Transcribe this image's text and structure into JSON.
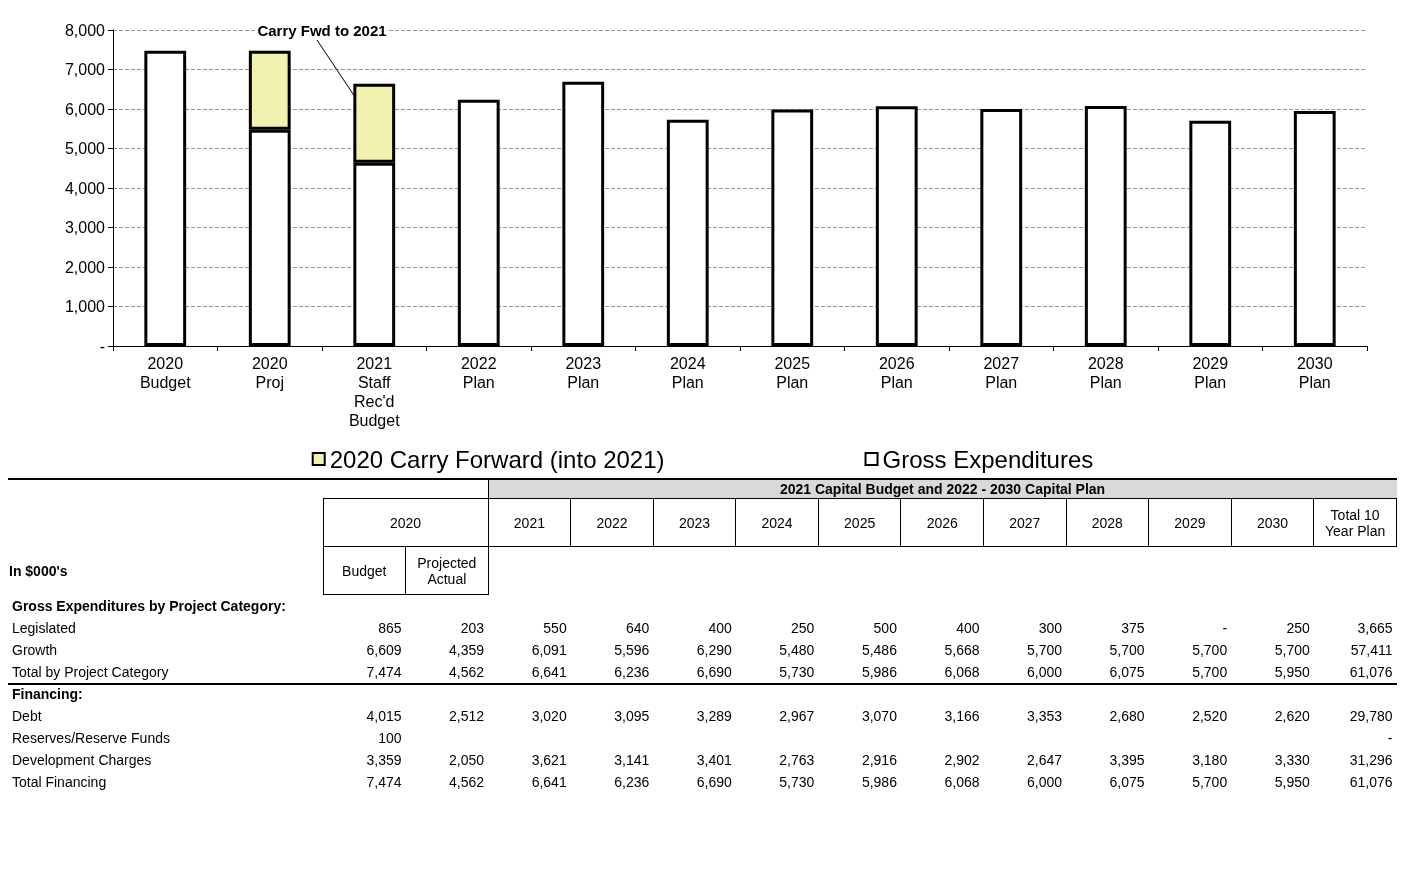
{
  "chart_data": [
    {
      "type": "bar",
      "stacked": true,
      "categories": [
        "2020\nBudget",
        "2020\nProj",
        "2021\nStaff\nRec'd\nBudget",
        "2022\nPlan",
        "2023\nPlan",
        "2024\nPlan",
        "2025\nPlan",
        "2026\nPlan",
        "2027\nPlan",
        "2028\nPlan",
        "2029\nPlan",
        "2030\nPlan"
      ],
      "series": [
        {
          "name": "Gross Expenditures",
          "color": "#ffffff",
          "values": [
            7474,
            5474,
            4641,
            6236,
            6690,
            5730,
            5986,
            6068,
            6000,
            6075,
            5700,
            5950
          ]
        },
        {
          "name": "2020 Carry Forward (into 2021)",
          "color": "#f2f2b0",
          "values": [
            null,
            2000,
            2000,
            null,
            null,
            null,
            null,
            null,
            null,
            null,
            null,
            null
          ]
        }
      ],
      "ylim": [
        0,
        8000
      ],
      "yticks": [
        {
          "value": 0,
          "label": "-"
        },
        {
          "value": 1000,
          "label": "1,000"
        },
        {
          "value": 2000,
          "label": "2,000"
        },
        {
          "value": 3000,
          "label": "3,000"
        },
        {
          "value": 4000,
          "label": "4,000"
        },
        {
          "value": 5000,
          "label": "5,000"
        },
        {
          "value": 6000,
          "label": "6,000"
        },
        {
          "value": 7000,
          "label": "7,000"
        },
        {
          "value": 8000,
          "label": "8,000"
        }
      ],
      "grid": "y",
      "legend": "bottom",
      "annotations": [
        "Carry Fwd to 2021"
      ]
    },
    {
      "type": "heatmap",
      "data_labels": true,
      "title": "2021  Capital Budget and 2022 - 2030 Capital Plan",
      "ylabel": "In $000's",
      "annotations": [
        "2020"
      ],
      "categories": [
        "Budget",
        "Projected Actual",
        "2021",
        "2022",
        "2023",
        "2024",
        "2025",
        "2026",
        "2027",
        "2028",
        "2029",
        "2030",
        "Total 10 Year Plan"
      ],
      "y_categories": [
        "Gross Expenditures by Project Category:",
        "Legislated",
        "Growth",
        "Total by Project Category",
        "Financing:",
        "Debt",
        "Reserves/Reserve Funds",
        "Development Charges",
        "Total Financing"
      ],
      "cells": [
        [
          null,
          null,
          null,
          null,
          null,
          null,
          null,
          null,
          null,
          null,
          null,
          null,
          null
        ],
        [
          865,
          203,
          550,
          640,
          400,
          250,
          500,
          400,
          300,
          375,
          null,
          250,
          3665
        ],
        [
          6609,
          4359,
          6091,
          5596,
          6290,
          5480,
          5486,
          5668,
          5700,
          5700,
          5700,
          5700,
          57411
        ],
        [
          7474,
          4562,
          6641,
          6236,
          6690,
          5730,
          5986,
          6068,
          6000,
          6075,
          5700,
          5950,
          61076
        ],
        [
          null,
          null,
          null,
          null,
          null,
          null,
          null,
          null,
          null,
          null,
          null,
          null,
          null
        ],
        [
          4015,
          2512,
          3020,
          3095,
          3289,
          2967,
          3070,
          3166,
          3353,
          2680,
          2520,
          2620,
          29780
        ],
        [
          100,
          null,
          null,
          null,
          null,
          null,
          null,
          null,
          null,
          null,
          null,
          null,
          null
        ],
        [
          3359,
          2050,
          3621,
          3141,
          3401,
          2763,
          2916,
          2902,
          2647,
          3395,
          3180,
          3330,
          31296
        ],
        [
          7474,
          4562,
          6641,
          6236,
          6690,
          5730,
          5986,
          6068,
          6000,
          6075,
          5700,
          5950,
          61076
        ]
      ],
      "cell_labels": [
        [
          null,
          null,
          null,
          null,
          null,
          null,
          null,
          null,
          null,
          null,
          null,
          null,
          null
        ],
        [
          "865",
          "203",
          "550",
          "640",
          "400",
          "250",
          "500",
          "400",
          "300",
          "375",
          "-",
          "250",
          "3,665"
        ],
        [
          "6,609",
          "4,359",
          "6,091",
          "5,596",
          "6,290",
          "5,480",
          "5,486",
          "5,668",
          "5,700",
          "5,700",
          "5,700",
          "5,700",
          "57,411"
        ],
        [
          "7,474",
          "4,562",
          "6,641",
          "6,236",
          "6,690",
          "5,730",
          "5,986",
          "6,068",
          "6,000",
          "6,075",
          "5,700",
          "5,950",
          "61,076"
        ],
        [
          null,
          null,
          null,
          null,
          null,
          null,
          null,
          null,
          null,
          null,
          null,
          null,
          null
        ],
        [
          "4,015",
          "2,512",
          "3,020",
          "3,095",
          "3,289",
          "2,967",
          "3,070",
          "3,166",
          "3,353",
          "2,680",
          "2,520",
          "2,620",
          "29,780"
        ],
        [
          "100",
          null,
          null,
          null,
          null,
          null,
          null,
          null,
          null,
          null,
          null,
          null,
          "-"
        ],
        [
          "3,359",
          "2,050",
          "3,621",
          "3,141",
          "3,401",
          "2,763",
          "2,916",
          "2,902",
          "2,647",
          "3,395",
          "3,180",
          "3,330",
          "31,296"
        ],
        [
          "7,474",
          "4,562",
          "6,641",
          "6,236",
          "6,690",
          "5,730",
          "5,986",
          "6,068",
          "6,000",
          "6,075",
          "5,700",
          "5,950",
          "61,076"
        ]
      ]
    }
  ]
}
